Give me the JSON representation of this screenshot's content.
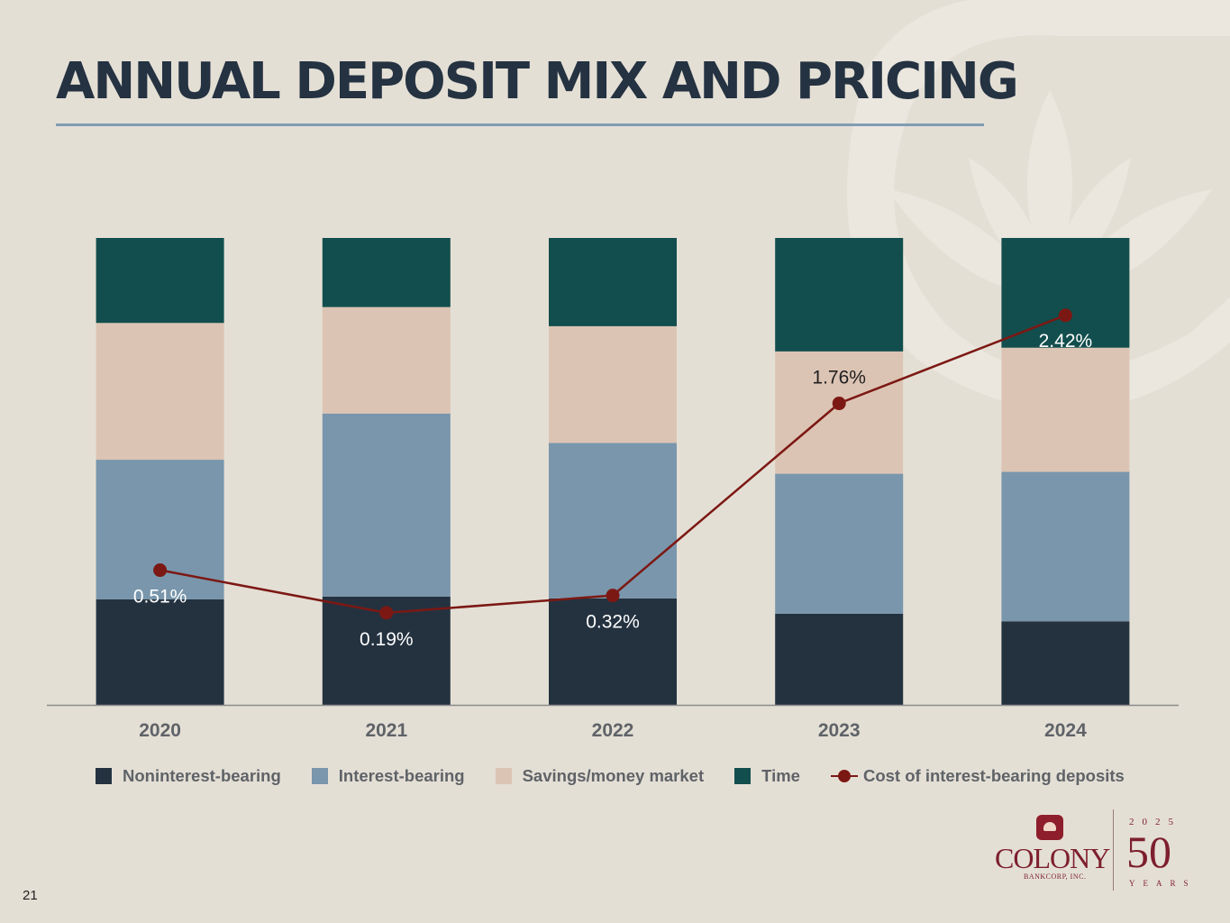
{
  "slide": {
    "title": "ANNUAL DEPOSIT MIX AND PRICING",
    "page_number": "21"
  },
  "logo": {
    "name": "COLONY",
    "subtitle": "BANKCORP, INC.",
    "year_top": "2025",
    "anniversary": "50",
    "years_word": "YEARS"
  },
  "legend": {
    "noninterest": "Noninterest-bearing",
    "interest": "Interest-bearing",
    "savings": "Savings/money market",
    "time": "Time",
    "cost": "Cost of interest-bearing deposits"
  },
  "colors": {
    "background": "#e4dfd5",
    "noninterest": "#243240",
    "interest": "#7996ac",
    "savings": "#dcc4b4",
    "time": "#124e4d",
    "cost_line": "#7c1813",
    "axis_text": "#5f6368"
  },
  "chart_data": {
    "type": "bar",
    "stacked": true,
    "normalized_percent": true,
    "categories": [
      "2020",
      "2021",
      "2022",
      "2023",
      "2024"
    ],
    "series": [
      {
        "name": "Noninterest-bearing",
        "values": [
          22.6,
          23.2,
          22.8,
          19.5,
          17.9
        ]
      },
      {
        "name": "Interest-bearing",
        "values": [
          29.9,
          39.2,
          33.3,
          30.0,
          32.0
        ]
      },
      {
        "name": "Savings/money market",
        "values": [
          29.3,
          22.8,
          25.0,
          26.2,
          26.6
        ]
      },
      {
        "name": "Time",
        "values": [
          18.2,
          14.8,
          18.9,
          24.3,
          23.5
        ]
      }
    ],
    "line_series": {
      "name": "Cost of interest-bearing deposits",
      "values": [
        0.51,
        0.19,
        0.32,
        1.76,
        2.42
      ],
      "labels": [
        "0.51%",
        "0.19%",
        "0.32%",
        "1.76%",
        "2.42%"
      ],
      "ylim": [
        -0.5,
        3.0
      ]
    },
    "ylim": [
      0,
      100
    ],
    "legend_position": "bottom"
  }
}
